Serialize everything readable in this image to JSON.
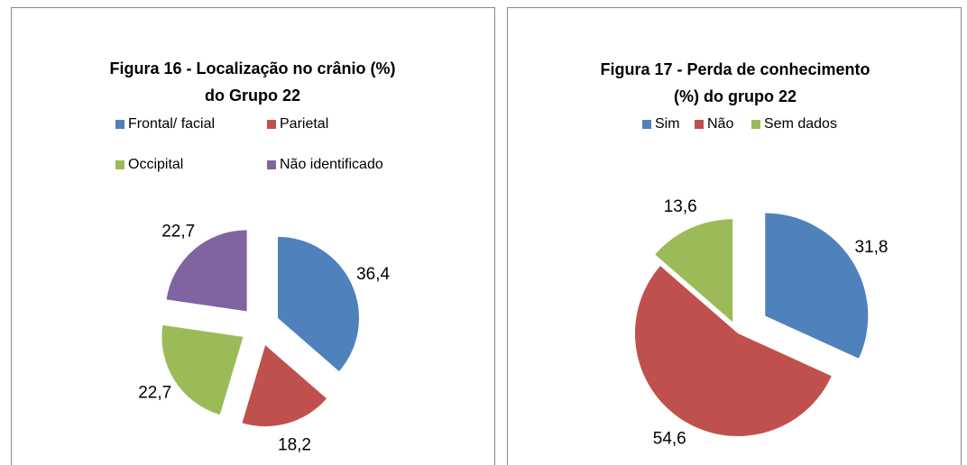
{
  "chart_data": [
    {
      "type": "pie",
      "title": [
        "Figura 16 - Localização no crânio (%)",
        "do Grupo 22"
      ],
      "categories": [
        "Frontal/ facial",
        "Parietal",
        "Occipital",
        "Não identificado"
      ],
      "values": [
        36.4,
        18.2,
        22.7,
        22.7
      ],
      "value_labels": [
        "36,4",
        "18,2",
        "22,7",
        "22,7"
      ],
      "colors": [
        "#4f81bd",
        "#c0504d",
        "#9bbb59",
        "#8064a2"
      ]
    },
    {
      "type": "pie",
      "title": [
        "Figura 17 - Perda de conhecimento",
        "(%) do grupo 22"
      ],
      "categories": [
        "Sim",
        "Não",
        "Sem dados"
      ],
      "values": [
        31.8,
        54.6,
        13.6
      ],
      "value_labels": [
        "31,8",
        "54,6",
        "13,6"
      ],
      "colors": [
        "#4f81bd",
        "#c0504d",
        "#9bbb59"
      ]
    }
  ]
}
